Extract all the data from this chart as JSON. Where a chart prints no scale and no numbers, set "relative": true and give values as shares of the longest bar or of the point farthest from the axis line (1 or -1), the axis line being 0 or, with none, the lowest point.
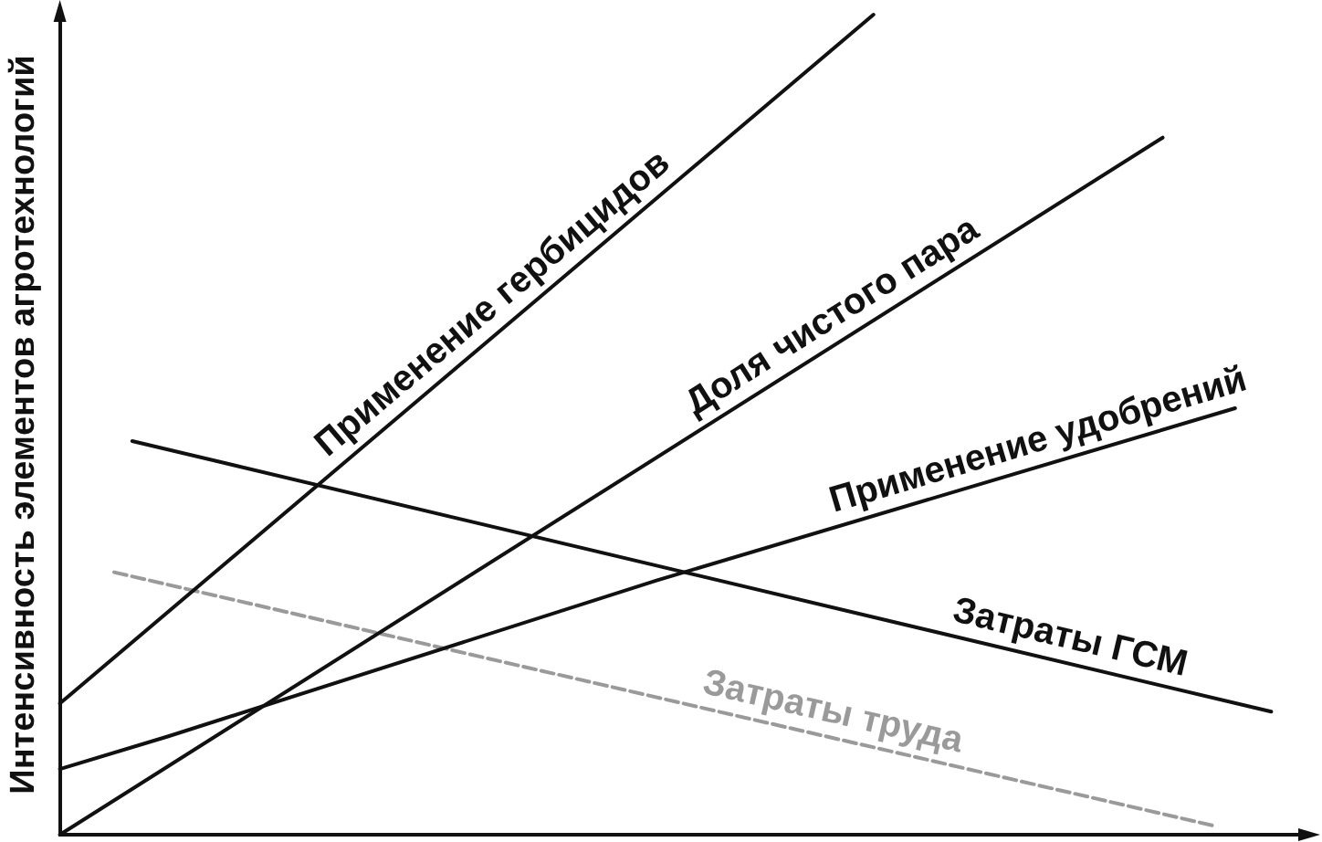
{
  "chart_data": {
    "type": "line",
    "ylabel": "Интенсивность элементов агротехнологий",
    "relative": true,
    "tick_labels": false,
    "marker": "none",
    "categories": [
      null,
      null,
      null,
      null,
      null,
      null,
      null,
      null,
      null,
      null,
      null,
      null,
      null,
      null,
      null,
      null,
      null,
      null,
      null,
      null,
      null,
      null,
      null,
      null,
      null,
      null,
      null,
      null,
      null,
      null,
      null,
      null,
      null,
      null,
      null,
      null,
      null,
      null,
      null,
      null,
      null,
      null,
      null,
      null,
      null,
      null,
      null,
      null,
      null,
      null,
      null,
      null,
      null,
      null,
      null,
      null,
      null,
      null,
      null,
      null,
      null,
      null,
      null,
      null,
      null,
      null,
      null,
      null,
      null,
      null
    ],
    "series": [
      {
        "name": "Применение гербицидов",
        "color": "#111111",
        "values": [
          0.16,
          null,
          null,
          null,
          null,
          null,
          null,
          null,
          null,
          null,
          null,
          null,
          null,
          null,
          null,
          null,
          null,
          null,
          null,
          null,
          null,
          null,
          null,
          null,
          null,
          null,
          null,
          null,
          null,
          null,
          null,
          null,
          null,
          null,
          null,
          null,
          null,
          null,
          null,
          null,
          null,
          null,
          null,
          null,
          null,
          1,
          null,
          null,
          null,
          null,
          null,
          null,
          null,
          null,
          null,
          null,
          null,
          null,
          null,
          null,
          null,
          null,
          null,
          null,
          null,
          null,
          null,
          null,
          null,
          null
        ]
      },
      {
        "name": "Доля чистого пара",
        "color": "#111111",
        "values": [
          0,
          null,
          null,
          null,
          null,
          null,
          null,
          null,
          null,
          null,
          null,
          null,
          null,
          null,
          null,
          null,
          null,
          null,
          null,
          null,
          null,
          null,
          null,
          null,
          null,
          null,
          null,
          null,
          null,
          null,
          null,
          null,
          null,
          null,
          null,
          null,
          null,
          null,
          null,
          null,
          null,
          null,
          null,
          null,
          null,
          null,
          null,
          null,
          null,
          null,
          null,
          null,
          null,
          null,
          null,
          null,
          null,
          null,
          null,
          null,
          null,
          0.85,
          null,
          null,
          null,
          null,
          null,
          null,
          null,
          null
        ]
      },
      {
        "name": "Применение удобрений",
        "color": "#111111",
        "values": [
          0.08,
          null,
          null,
          null,
          null,
          null,
          0.12,
          null,
          null,
          null,
          null,
          null,
          null,
          null,
          null,
          null,
          null,
          null,
          null,
          null,
          null,
          null,
          null,
          null,
          null,
          null,
          null,
          null,
          null,
          null,
          null,
          null,
          null,
          0.31,
          null,
          null,
          null,
          null,
          null,
          null,
          null,
          null,
          null,
          null,
          null,
          null,
          null,
          null,
          null,
          null,
          null,
          null,
          null,
          null,
          null,
          null,
          null,
          null,
          null,
          null,
          null,
          null,
          null,
          null,
          null,
          0.52,
          null,
          null,
          null,
          null
        ]
      },
      {
        "name": "Затраты ГСМ",
        "color": "#111111",
        "values": [
          null,
          null,
          null,
          null,
          0.48,
          null,
          null,
          null,
          null,
          null,
          null,
          null,
          null,
          null,
          null,
          null,
          null,
          null,
          null,
          null,
          null,
          null,
          null,
          null,
          null,
          null,
          null,
          null,
          null,
          null,
          null,
          null,
          null,
          null,
          null,
          null,
          null,
          null,
          null,
          null,
          null,
          null,
          null,
          null,
          null,
          null,
          null,
          null,
          null,
          null,
          null,
          null,
          null,
          null,
          null,
          null,
          null,
          null,
          null,
          null,
          null,
          null,
          null,
          null,
          null,
          null,
          null,
          0.15,
          null,
          null
        ]
      },
      {
        "name": "Затраты труда",
        "color": "#9a9a9a",
        "line_style": "dashed",
        "values": [
          null,
          null,
          null,
          0.32,
          null,
          null,
          null,
          null,
          null,
          null,
          null,
          null,
          null,
          null,
          null,
          null,
          null,
          null,
          null,
          null,
          null,
          null,
          null,
          null,
          null,
          null,
          null,
          null,
          null,
          null,
          null,
          null,
          null,
          null,
          null,
          null,
          null,
          null,
          null,
          null,
          null,
          null,
          null,
          null,
          null,
          null,
          null,
          null,
          null,
          null,
          null,
          null,
          null,
          null,
          null,
          null,
          null,
          null,
          null,
          null,
          null,
          null,
          null,
          null,
          0.01,
          null,
          null,
          null,
          null,
          null
        ]
      }
    ]
  }
}
